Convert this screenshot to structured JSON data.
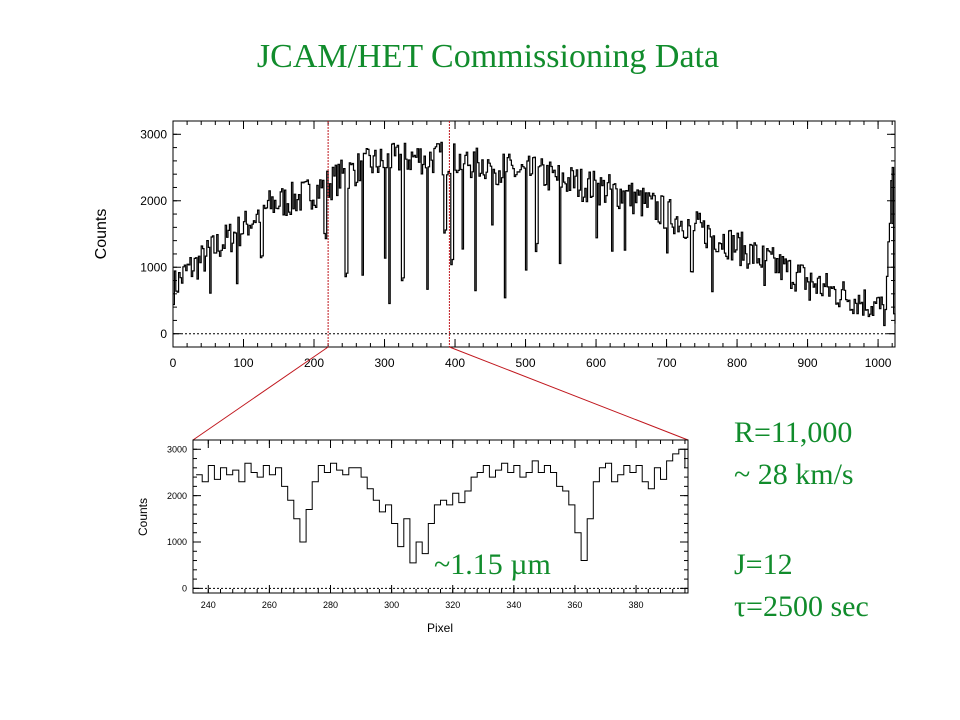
{
  "title": "JCAM/HET Commissioning Data",
  "annotations": {
    "resolution": "R=11,000",
    "velocity": "~ 28 km/s",
    "magnitude": "J=12",
    "exposure": "τ=2500 sec",
    "wavelength": "~1.15 µm"
  },
  "colors": {
    "text_accent": "#118c2c",
    "zoom_lines": "#c0171e",
    "data": "#000000"
  },
  "chart_data": [
    {
      "type": "line",
      "ylabel": "Counts",
      "xlim": [
        0,
        1024
      ],
      "ylim": [
        -200,
        3200
      ],
      "xticks": [
        0,
        100,
        200,
        300,
        400,
        500,
        600,
        700,
        800,
        900,
        1000
      ],
      "yticks": [
        0,
        1000,
        2000,
        3000
      ],
      "zoom_region": [
        220,
        392
      ],
      "zero_line": true,
      "series": [
        {
          "x": [
            0,
            20,
            40,
            60,
            80,
            100,
            120,
            140,
            160,
            180,
            200,
            220,
            240,
            260,
            280,
            300,
            320,
            340,
            360,
            380,
            400,
            420,
            440,
            460,
            480,
            500,
            520,
            540,
            560,
            580,
            600,
            620,
            640,
            660,
            680,
            700,
            720,
            740,
            760,
            780,
            800,
            820,
            840,
            860,
            880,
            900,
            920,
            940,
            960,
            980,
            1000,
            1010,
            1020,
            1024
          ],
          "y": [
            700,
            950,
            1100,
            1300,
            1450,
            1600,
            1800,
            1950,
            2000,
            2050,
            2150,
            2250,
            2380,
            2480,
            2550,
            2580,
            2620,
            2650,
            2650,
            2640,
            2620,
            2580,
            2560,
            2500,
            2450,
            2420,
            2400,
            2350,
            2300,
            2250,
            2200,
            2150,
            2100,
            2000,
            1900,
            1800,
            1700,
            1600,
            1500,
            1420,
            1300,
            1200,
            1100,
            1000,
            900,
            800,
            700,
            620,
            550,
            480,
            400,
            300,
            2500,
            300
          ],
          "absorption_lines": [
            {
              "x": 52,
              "y": 600
            },
            {
              "x": 90,
              "y": 800
            },
            {
              "x": 125,
              "y": 1150
            },
            {
              "x": 215,
              "y": 1450
            },
            {
              "x": 245,
              "y": 900
            },
            {
              "x": 268,
              "y": 950
            },
            {
              "x": 300,
              "y": 1100
            },
            {
              "x": 306,
              "y": 500
            },
            {
              "x": 325,
              "y": 800
            },
            {
              "x": 360,
              "y": 700
            },
            {
              "x": 385,
              "y": 1500
            },
            {
              "x": 395,
              "y": 1100
            },
            {
              "x": 410,
              "y": 1200
            },
            {
              "x": 428,
              "y": 700
            },
            {
              "x": 452,
              "y": 1700
            },
            {
              "x": 470,
              "y": 500
            },
            {
              "x": 500,
              "y": 900
            },
            {
              "x": 515,
              "y": 1300
            },
            {
              "x": 548,
              "y": 1000
            },
            {
              "x": 600,
              "y": 1500
            },
            {
              "x": 622,
              "y": 1200
            },
            {
              "x": 640,
              "y": 1300
            },
            {
              "x": 700,
              "y": 1150
            },
            {
              "x": 735,
              "y": 900
            },
            {
              "x": 764,
              "y": 650
            },
            {
              "x": 838,
              "y": 700
            },
            {
              "x": 902,
              "y": 500
            }
          ]
        }
      ]
    },
    {
      "type": "line",
      "xlabel": "Pixel",
      "ylabel": "Counts",
      "xlim": [
        235,
        397
      ],
      "ylim": [
        -100,
        3200
      ],
      "xticks": [
        240,
        260,
        280,
        300,
        320,
        340,
        360,
        380
      ],
      "yticks": [
        0,
        1000,
        2000,
        3000
      ],
      "zero_line": true,
      "series": [
        {
          "x": [
            236,
            238,
            240,
            242,
            244,
            246,
            248,
            250,
            252,
            254,
            256,
            258,
            260,
            262,
            264,
            266,
            268,
            270,
            272,
            274,
            276,
            278,
            280,
            282,
            284,
            286,
            288,
            290,
            292,
            294,
            296,
            298,
            300,
            302,
            304,
            306,
            308,
            310,
            312,
            314,
            316,
            318,
            320,
            322,
            324,
            326,
            328,
            330,
            332,
            334,
            336,
            338,
            340,
            342,
            344,
            346,
            348,
            350,
            352,
            354,
            356,
            358,
            360,
            362,
            364,
            366,
            368,
            370,
            372,
            374,
            376,
            378,
            380,
            382,
            384,
            386,
            388,
            390,
            392,
            394,
            396
          ],
          "y": [
            2450,
            2300,
            2650,
            2350,
            2600,
            2450,
            2550,
            2300,
            2700,
            2500,
            2400,
            2650,
            2450,
            2600,
            2200,
            1900,
            1500,
            1000,
            1700,
            2300,
            2650,
            2500,
            2700,
            2550,
            2450,
            2600,
            2600,
            2400,
            2150,
            1900,
            1650,
            1800,
            1400,
            900,
            1500,
            550,
            1000,
            750,
            1400,
            1800,
            1900,
            1800,
            2050,
            1850,
            2100,
            2400,
            2500,
            2650,
            2400,
            2550,
            2700,
            2500,
            2650,
            2400,
            2500,
            2750,
            2500,
            2650,
            2500,
            2200,
            2100,
            1800,
            1200,
            600,
            1500,
            2300,
            2600,
            2700,
            2300,
            2450,
            2650,
            2500,
            2650,
            2300,
            2150,
            2600,
            2350,
            2750,
            2900,
            3000,
            2600
          ]
        }
      ]
    }
  ]
}
